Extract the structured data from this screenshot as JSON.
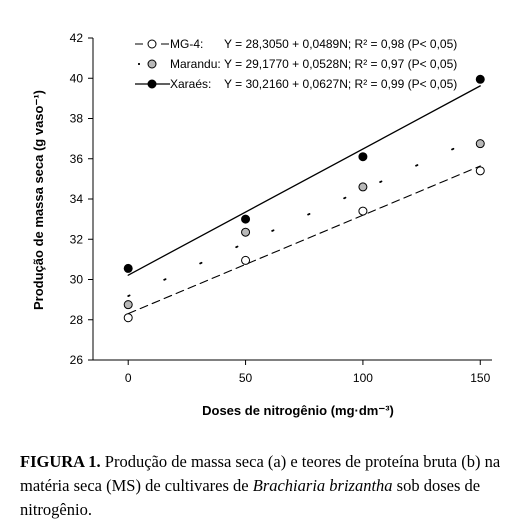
{
  "chart_data": {
    "type": "scatter",
    "xlabel": "Doses de nitrogênio (mg·dm⁻³)",
    "ylabel": "Produção de massa seca (g vaso⁻¹)",
    "x_ticks": [
      0,
      50,
      100,
      150
    ],
    "y_ticks": [
      26,
      28,
      30,
      32,
      34,
      36,
      38,
      40,
      42
    ],
    "y_tick_labels": [
      "26",
      "28",
      "30",
      "32",
      "34",
      "36",
      "38",
      "40",
      "42"
    ],
    "xlim": [
      -15,
      155
    ],
    "ylim": [
      26,
      42
    ],
    "legend_position": "top-left",
    "series": [
      {
        "name": "MG-4:",
        "equation": "Y = 28,3050 + 0,0489N; R² = 0,98 (P< 0,05)",
        "marker": "open",
        "line": "dashed",
        "intercept": 28.305,
        "slope": 0.0489,
        "x": [
          0,
          50,
          100,
          150
        ],
        "y": [
          28.1,
          30.95,
          33.4,
          35.4
        ]
      },
      {
        "name": "Marandu:",
        "equation": "Y = 29,1770 + 0,0528N; R² = 0,97 (P< 0,05)",
        "marker": "gray",
        "line": "dotted",
        "intercept": 29.177,
        "slope": 0.0528,
        "x": [
          0,
          50,
          100,
          150
        ],
        "y": [
          28.75,
          32.35,
          34.6,
          36.75
        ]
      },
      {
        "name": "Xaraés:",
        "equation": "Y = 30,2160 + 0,0627N; R² = 0,99 (P< 0,05)",
        "marker": "filled",
        "line": "solid",
        "intercept": 30.216,
        "slope": 0.0627,
        "x": [
          0,
          50,
          100,
          150
        ],
        "y": [
          30.55,
          33.0,
          36.1,
          39.95
        ]
      }
    ]
  },
  "caption": {
    "figure_label": "FIGURA 1.",
    "text_before": " Produção de massa seca (a) e teores de proteína bruta (b) na matéria seca (MS) de cultivares de ",
    "species": "Brachiaria brizantha",
    "text_after": " sob doses de nitrogênio."
  },
  "colors": {
    "open_marker": "#ffffff",
    "gray_marker": "#b8b8b8",
    "filled_marker": "#000000"
  }
}
